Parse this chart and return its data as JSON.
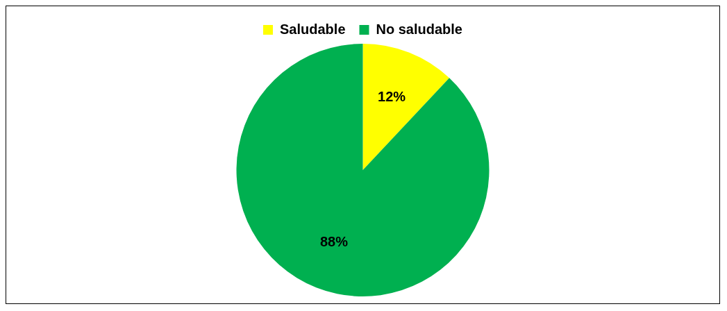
{
  "chart_data": {
    "type": "pie",
    "categories": [
      "Saludable",
      "No saludable"
    ],
    "values": [
      12,
      88
    ],
    "colors": [
      "#ffff00",
      "#00b050"
    ],
    "value_labels": [
      "12%",
      "88%"
    ],
    "legend": "top"
  }
}
